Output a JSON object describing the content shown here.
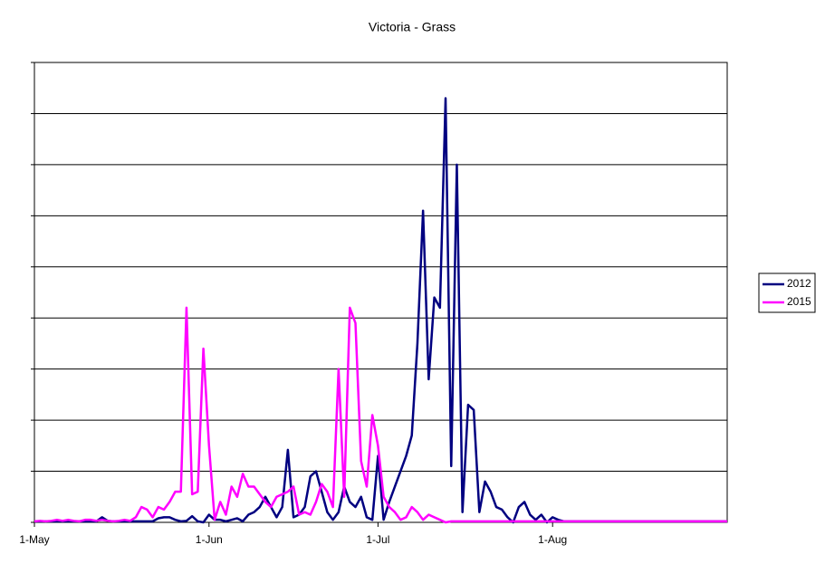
{
  "chart_data": {
    "type": "line",
    "title": "Victoria - Grass",
    "x": [
      0,
      1,
      2,
      3,
      4,
      5,
      6,
      7,
      8,
      9,
      10,
      11,
      12,
      13,
      14,
      15,
      16,
      17,
      18,
      19,
      20,
      21,
      22,
      23,
      24,
      25,
      26,
      27,
      28,
      29,
      30,
      31,
      32,
      33,
      34,
      35,
      36,
      37,
      38,
      39,
      40,
      41,
      42,
      43,
      44,
      45,
      46,
      47,
      48,
      49,
      50,
      51,
      52,
      53,
      54,
      55,
      56,
      57,
      58,
      59,
      60,
      61,
      62,
      63,
      64,
      65,
      66,
      67,
      68,
      69,
      70,
      71,
      72,
      73,
      74,
      75,
      76,
      77,
      78,
      79,
      80,
      81,
      82,
      83,
      84,
      85,
      86,
      87,
      88,
      89,
      90,
      91,
      92,
      93,
      94,
      95,
      96,
      97,
      98,
      99,
      100,
      101,
      102,
      103,
      104,
      105,
      106,
      107,
      108,
      109,
      110,
      111,
      112,
      113,
      114,
      115,
      116,
      117,
      118,
      119,
      120,
      121,
      122,
      123
    ],
    "xlim": [
      0,
      123
    ],
    "xticks": [
      {
        "value": 0,
        "label": "1-May"
      },
      {
        "value": 31,
        "label": "1-Jun"
      },
      {
        "value": 61,
        "label": "1-Jul"
      },
      {
        "value": 92,
        "label": "1-Aug"
      }
    ],
    "ylim": [
      0,
      9
    ],
    "yticks": [
      0,
      1,
      2,
      3,
      4,
      5,
      6,
      7,
      8,
      9
    ],
    "ytick_labels": false,
    "grid": true,
    "legend": "right",
    "series": [
      {
        "name": "2012",
        "color": "#000080",
        "values": [
          0.02,
          0.02,
          0.02,
          0.02,
          0.02,
          0.02,
          0.02,
          0.02,
          0.02,
          0.02,
          0.02,
          0.02,
          0.1,
          0.03,
          0.02,
          0.02,
          0.02,
          0.02,
          0.02,
          0.02,
          0.02,
          0.02,
          0.08,
          0.1,
          0.1,
          0.05,
          0.02,
          0.03,
          0.12,
          0.02,
          0,
          0.15,
          0.05,
          0.05,
          0.02,
          0.05,
          0.08,
          0.02,
          0.15,
          0.2,
          0.3,
          0.5,
          0.3,
          0.1,
          0.3,
          1.42,
          0.1,
          0.15,
          0.3,
          0.9,
          1,
          0.6,
          0.2,
          0.05,
          0.2,
          0.7,
          0.4,
          0.3,
          0.5,
          0.1,
          0.05,
          1.3,
          0.05,
          0.4,
          0.7,
          1,
          1.3,
          1.7,
          3.5,
          6.1,
          2.8,
          4.4,
          4.2,
          8.3,
          1.1,
          7,
          0.2,
          2.3,
          2.2,
          0.2,
          0.8,
          0.6,
          0.3,
          0.25,
          0.1,
          0,
          0.3,
          0.4,
          0.15,
          0.05,
          0.15,
          0,
          0.1,
          0.05,
          0.02,
          0.02,
          0.02,
          0.02,
          0.02,
          0.02,
          0.02,
          0.02,
          0.02,
          0.02,
          0.02,
          0.02,
          0.02,
          0.02,
          0.02,
          0.02,
          0.02,
          0.02,
          0.02,
          0.02,
          0.02,
          0.02,
          0.02,
          0.02,
          0.02,
          0.02,
          0.02,
          0.02,
          0.02,
          0.02
        ]
      },
      {
        "name": "2015",
        "color": "#ff00ff",
        "values": [
          0.02,
          0.03,
          0.02,
          0.03,
          0.05,
          0.03,
          0.05,
          0.03,
          0.02,
          0.05,
          0.05,
          0.03,
          0.05,
          0.03,
          0.02,
          0.03,
          0.05,
          0.03,
          0.1,
          0.3,
          0.25,
          0.1,
          0.3,
          0.25,
          0.4,
          0.6,
          0.6,
          4.2,
          0.55,
          0.6,
          3.4,
          1.5,
          0.05,
          0.4,
          0.15,
          0.7,
          0.5,
          0.95,
          0.7,
          0.7,
          0.55,
          0.4,
          0.3,
          0.5,
          0.55,
          0.6,
          0.7,
          0.15,
          0.2,
          0.15,
          0.4,
          0.75,
          0.6,
          0.3,
          3,
          0.5,
          4.2,
          3.9,
          1.2,
          0.7,
          2.1,
          1.5,
          0.5,
          0.3,
          0.2,
          0.05,
          0.1,
          0.3,
          0.2,
          0.05,
          0.15,
          0.1,
          0.05,
          0,
          0.02,
          0.02,
          0.02,
          0.02,
          0.02,
          0.02,
          0.02,
          0.02,
          0.02,
          0.02,
          0.02,
          0.02,
          0.02,
          0.02,
          0.02,
          0.02,
          0.02,
          0.02,
          0.02,
          0.02,
          0.02,
          0.02,
          0.02,
          0.02,
          0.02,
          0.02,
          0.02,
          0.02,
          0.02,
          0.02,
          0.02,
          0.02,
          0.02,
          0.02,
          0.02,
          0.02,
          0.02,
          0.02,
          0.02,
          0.02,
          0.02,
          0.02,
          0.02,
          0.02,
          0.02,
          0.02,
          0.02,
          0.02,
          0.02,
          0.02
        ]
      }
    ]
  }
}
